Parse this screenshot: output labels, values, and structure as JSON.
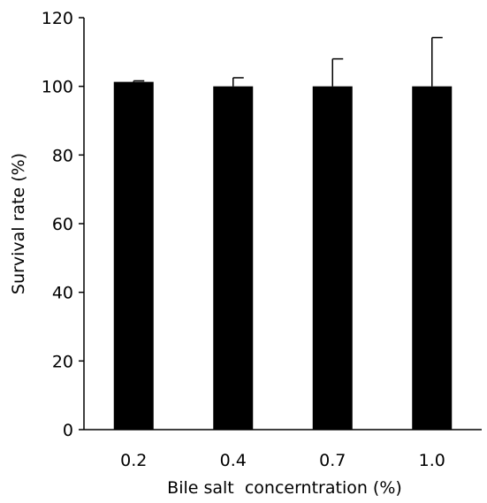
{
  "chart_data": {
    "type": "bar",
    "title": "",
    "xlabel": "Bile salt  concerntration (%)",
    "ylabel": "Survival rate (%)",
    "categories": [
      "0.2",
      "0.4",
      "0.7",
      "1.0"
    ],
    "values": [
      101.3,
      100.0,
      100.0,
      100.0
    ],
    "error_plus": [
      0.3,
      2.5,
      8.0,
      14.2
    ],
    "ylim": [
      0,
      120
    ],
    "yticks": [
      "0",
      "20",
      "40",
      "60",
      "80",
      "100",
      "120"
    ],
    "grid": false,
    "legend": "none",
    "bar_color": "#000000"
  }
}
